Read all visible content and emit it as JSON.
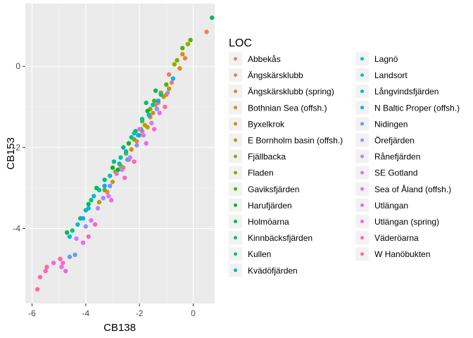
{
  "chart_data": {
    "type": "scatter",
    "xlabel": "CB138",
    "ylabel": "CB153",
    "xlim": [
      -6.25,
      0.8
    ],
    "ylim": [
      -5.85,
      1.55
    ],
    "x_ticks": [
      -6,
      -4,
      -2,
      0
    ],
    "x_tick_labels": [
      "-6",
      "-4",
      "-2",
      "0"
    ],
    "y_ticks": [
      -4,
      -2,
      0
    ],
    "y_tick_labels": [
      "-4",
      "-2",
      "0"
    ],
    "grid": true,
    "legend_title": "LOC",
    "legend_position": "right",
    "series": [
      {
        "name": "Abbekås",
        "color": "#F8766D",
        "points": [
          [
            -1.4,
            -0.95
          ],
          [
            -1.9,
            -1.6
          ],
          [
            -2.6,
            -2.5
          ],
          [
            -0.8,
            -0.4
          ],
          [
            -3.2,
            -3.1
          ]
        ]
      },
      {
        "name": "Ängskärsklubb",
        "color": "#F17E4F",
        "points": [
          [
            0.5,
            0.85
          ],
          [
            -0.9,
            -0.2
          ],
          [
            -2.1,
            -1.85
          ],
          [
            -1.3,
            -0.9
          ],
          [
            -0.3,
            0.2
          ]
        ]
      },
      {
        "name": "Ängskärsklubb (spring)",
        "color": "#E7861B",
        "points": [
          [
            -1.0,
            -0.7
          ],
          [
            -2.4,
            -2.3
          ],
          [
            -1.6,
            -1.25
          ],
          [
            -0.5,
            -0.05
          ]
        ]
      },
      {
        "name": "Bothnian Sea (offsh.)",
        "color": "#DB8E00",
        "points": [
          [
            -0.4,
            0.3
          ],
          [
            -1.1,
            -0.75
          ],
          [
            -1.7,
            -1.5
          ]
        ]
      },
      {
        "name": "Byxelkrok",
        "color": "#CF9400",
        "points": [
          [
            -2.3,
            -2.05
          ],
          [
            -3.0,
            -2.85
          ],
          [
            -1.5,
            -1.15
          ]
        ]
      },
      {
        "name": "E Bornholm basin (offsh.)",
        "color": "#AEA200",
        "points": [
          [
            -1.8,
            -1.45
          ],
          [
            -2.7,
            -2.45
          ],
          [
            -3.5,
            -3.35
          ],
          [
            -0.9,
            -0.55
          ]
        ]
      },
      {
        "name": "Fjällbacka",
        "color": "#94AA00",
        "points": [
          [
            -0.2,
            0.55
          ],
          [
            -1.2,
            -0.65
          ],
          [
            -2.0,
            -1.7
          ],
          [
            -2.9,
            -2.6
          ],
          [
            -0.7,
            0.05
          ]
        ]
      },
      {
        "name": "Fladen",
        "color": "#7CAE00",
        "points": [
          [
            -1.6,
            -1.05
          ],
          [
            -2.5,
            -2.15
          ],
          [
            -3.3,
            -3.05
          ],
          [
            -0.6,
            0.15
          ],
          [
            -1.9,
            -1.35
          ],
          [
            -2.2,
            -1.8
          ]
        ]
      },
      {
        "name": "Gaviksfjärden",
        "color": "#4FB300",
        "points": [
          [
            -0.1,
            0.65
          ],
          [
            -1.0,
            -0.45
          ],
          [
            -0.4,
            0.45
          ],
          [
            -1.45,
            -0.85
          ]
        ]
      },
      {
        "name": "Harufjärden",
        "color": "#00B81F",
        "points": [
          [
            -3.0,
            -2.5
          ],
          [
            -2.4,
            -1.9
          ],
          [
            -1.7,
            -1.1
          ],
          [
            -2.8,
            -2.55
          ]
        ]
      },
      {
        "name": "Holmöarna",
        "color": "#00BB4E",
        "points": [
          [
            0.7,
            1.2
          ],
          [
            -3.6,
            -3.0
          ],
          [
            -3.9,
            -3.4
          ],
          [
            -1.4,
            -0.6
          ],
          [
            -2.15,
            -1.6
          ],
          [
            -4.7,
            -4.1
          ]
        ]
      },
      {
        "name": "Kinnbäcksfjärden",
        "color": "#00BE70",
        "points": [
          [
            -3.3,
            -2.8
          ],
          [
            -2.6,
            -2.0
          ],
          [
            -1.75,
            -0.9
          ],
          [
            -4.2,
            -3.75
          ],
          [
            -2.95,
            -2.35
          ]
        ]
      },
      {
        "name": "Kullen",
        "color": "#00C08B",
        "points": [
          [
            -3.8,
            -3.3
          ],
          [
            -2.3,
            -1.75
          ],
          [
            -1.2,
            -0.7
          ],
          [
            -4.5,
            -4.05
          ]
        ]
      },
      {
        "name": "Kvädöfjärden",
        "color": "#00C1A3",
        "points": [
          [
            -3.5,
            -3.05
          ],
          [
            -2.7,
            -2.25
          ],
          [
            -4.0,
            -3.55
          ],
          [
            -1.9,
            -1.3
          ]
        ]
      },
      {
        "name": "Lagnö",
        "color": "#00BFBA",
        "points": [
          [
            -3.1,
            -2.7
          ],
          [
            -2.2,
            -1.65
          ],
          [
            -4.3,
            -3.9
          ],
          [
            -1.5,
            -0.95
          ]
        ]
      },
      {
        "name": "Landsort",
        "color": "#00BBCE",
        "points": [
          [
            -3.7,
            -3.2
          ],
          [
            -2.75,
            -2.4
          ],
          [
            -1.95,
            -1.55
          ],
          [
            -4.6,
            -4.2
          ]
        ]
      },
      {
        "name": "Långvindsfjärden",
        "color": "#00B5E0",
        "points": [
          [
            -2.5,
            -2.1
          ],
          [
            -3.9,
            -3.5
          ],
          [
            -1.65,
            -1.2
          ],
          [
            -0.75,
            -0.3
          ]
        ]
      },
      {
        "name": "N Baltic Proper (offsh.)",
        "color": "#00ABFD",
        "points": [
          [
            -3.3,
            -2.95
          ],
          [
            -2.05,
            -1.7
          ],
          [
            -4.1,
            -3.75
          ],
          [
            -1.3,
            -0.85
          ]
        ]
      },
      {
        "name": "Nidingen",
        "color": "#619CFF",
        "points": [
          [
            -4.4,
            -4.65
          ],
          [
            -4.6,
            -4.7
          ],
          [
            -3.1,
            -2.95
          ],
          [
            -2.45,
            -2.3
          ]
        ]
      },
      {
        "name": "Örefjärden",
        "color": "#8F91FF",
        "points": [
          [
            -2.1,
            -1.95
          ],
          [
            -3.35,
            -3.25
          ],
          [
            -1.35,
            -1.05
          ],
          [
            -4.0,
            -3.95
          ]
        ]
      },
      {
        "name": "Rånefjärden",
        "color": "#B385FF",
        "points": [
          [
            -1.85,
            -1.7
          ],
          [
            -2.65,
            -2.55
          ],
          [
            -3.55,
            -3.5
          ],
          [
            -0.95,
            -0.65
          ]
        ]
      },
      {
        "name": "SE Gotland",
        "color": "#CD79FF",
        "points": [
          [
            -2.35,
            -2.25
          ],
          [
            -3.15,
            -3.2
          ],
          [
            -1.55,
            -1.4
          ],
          [
            -4.35,
            -4.25
          ]
        ]
      },
      {
        "name": "Sea of Åland (offsh.)",
        "color": "#E16EF7",
        "points": [
          [
            -2.0,
            -1.55
          ],
          [
            -2.85,
            -2.65
          ],
          [
            -1.25,
            -1.15
          ],
          [
            -3.8,
            -3.8
          ],
          [
            -4.9,
            -4.95
          ]
        ]
      },
      {
        "name": "Utlängan",
        "color": "#EE67E7",
        "points": [
          [
            -1.75,
            -1.9
          ],
          [
            -3.05,
            -3.3
          ],
          [
            -4.1,
            -4.35
          ],
          [
            -5.2,
            -4.85
          ]
        ]
      },
      {
        "name": "Utlängan (spring)",
        "color": "#F964D4",
        "points": [
          [
            -2.55,
            -2.75
          ],
          [
            -3.65,
            -3.9
          ],
          [
            -4.75,
            -5.05
          ],
          [
            -1.45,
            -1.55
          ]
        ]
      },
      {
        "name": "Väderöarna",
        "color": "#FF64BE",
        "points": [
          [
            -3.9,
            -4.2
          ],
          [
            -4.85,
            -4.85
          ],
          [
            -5.5,
            -5.05
          ],
          [
            -2.2,
            -2.35
          ]
        ]
      },
      {
        "name": "W Hanöbukten",
        "color": "#FF68A2",
        "points": [
          [
            -5.8,
            -5.5
          ],
          [
            -5.7,
            -5.2
          ],
          [
            -5.45,
            -4.95
          ],
          [
            -4.95,
            -4.75
          ],
          [
            -1.05,
            -1.0
          ]
        ]
      }
    ]
  }
}
